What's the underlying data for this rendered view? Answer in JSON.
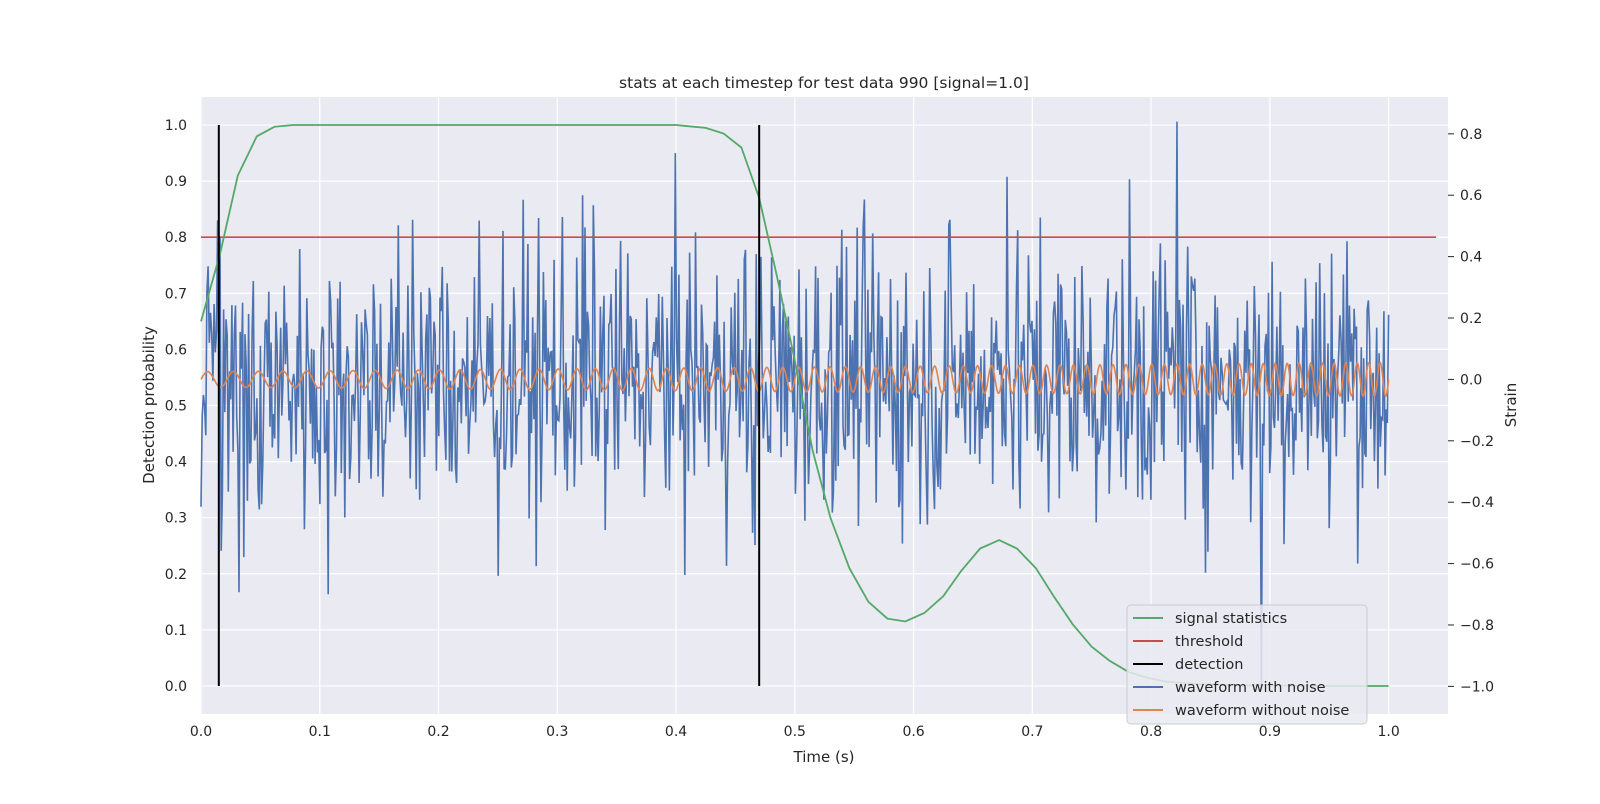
{
  "chart_data": {
    "type": "line",
    "title": "stats at each timestep for test data 990 [signal=1.0]",
    "xlabel": "Time (s)",
    "ylabel": "Detection probability",
    "y2label": "Strain",
    "xlim": [
      0.0,
      1.05
    ],
    "ylim": [
      -0.05,
      1.05
    ],
    "y2lim": [
      -1.09,
      0.92
    ],
    "xticks": [
      "0.0",
      "0.1",
      "0.2",
      "0.3",
      "0.4",
      "0.5",
      "0.6",
      "0.7",
      "0.8",
      "0.9",
      "1.0"
    ],
    "yticks": [
      "0.0",
      "0.1",
      "0.2",
      "0.3",
      "0.4",
      "0.5",
      "0.6",
      "0.7",
      "0.8",
      "0.9",
      "1.0"
    ],
    "y2ticks": [
      "−1.0",
      "−0.8",
      "−0.6",
      "−0.4",
      "−0.2",
      "0.0",
      "0.2",
      "0.4",
      "0.6",
      "0.8"
    ],
    "grid": true,
    "legend_position": "lower-right",
    "colors": {
      "background": "#eaeaf2",
      "grid": "#ffffff",
      "signal": "#55a868",
      "threshold": "#c44e52",
      "detection": "#000000",
      "noisy": "#4c72b0",
      "clean": "#dd8452"
    },
    "series": [
      {
        "name": "signal statistics",
        "axis": "left",
        "x": [
          0.0,
          0.016,
          0.031,
          0.047,
          0.062,
          0.078,
          0.094,
          0.109,
          0.125,
          0.2,
          0.3,
          0.4,
          0.41,
          0.425,
          0.44,
          0.455,
          0.47,
          0.485,
          0.5,
          0.515,
          0.53,
          0.546,
          0.562,
          0.578,
          0.593,
          0.609,
          0.625,
          0.64,
          0.656,
          0.672,
          0.687,
          0.703,
          0.718,
          0.734,
          0.75,
          0.765,
          0.781,
          0.796,
          0.812,
          0.828,
          0.843,
          0.859,
          0.875,
          0.9,
          0.95,
          1.0
        ],
        "values": [
          0.65,
          0.77,
          0.91,
          0.98,
          0.997,
          1.0,
          1.0,
          1.0,
          1.0,
          1.0,
          1.0,
          1.0,
          0.998,
          0.995,
          0.985,
          0.96,
          0.87,
          0.73,
          0.58,
          0.42,
          0.3,
          0.21,
          0.15,
          0.12,
          0.115,
          0.13,
          0.16,
          0.205,
          0.245,
          0.26,
          0.245,
          0.21,
          0.16,
          0.11,
          0.07,
          0.045,
          0.025,
          0.015,
          0.008,
          0.005,
          0.003,
          0.002,
          0.001,
          0.001,
          0.0,
          0.0
        ]
      },
      {
        "name": "threshold",
        "axis": "left",
        "x": [
          0.0,
          1.04
        ],
        "values": [
          0.8,
          0.8
        ]
      },
      {
        "name": "detection",
        "axis": "left",
        "x": [
          0.015,
          0.47
        ],
        "values": [
          1.0,
          1.0
        ]
      },
      {
        "name": "waveform with noise",
        "axis": "right",
        "x_range": [
          0.0,
          1.0
        ],
        "n_points": 1000,
        "std": 0.23,
        "values_sample": [
          0.25,
          -0.7,
          0.52,
          -0.64,
          0.6,
          0.2,
          -0.5,
          0.37,
          -0.12,
          0.66,
          -0.19,
          0.84,
          -1.0,
          0.45
        ]
      },
      {
        "name": "waveform without noise",
        "axis": "right",
        "x_range": [
          0.0,
          1.0
        ],
        "amplitude_start": 0.025,
        "amplitude_end": 0.055,
        "cycles": 75
      }
    ]
  }
}
